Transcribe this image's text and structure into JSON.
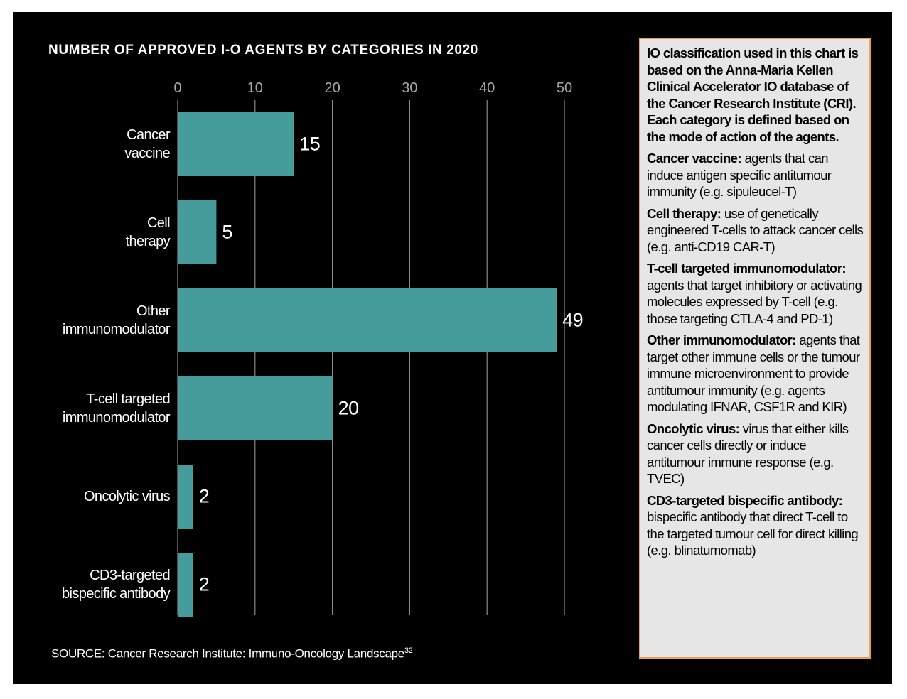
{
  "chart_data": {
    "type": "hbar",
    "title": "NUMBER OF APPROVED I-O AGENTS BY CATEGORIES IN 2020",
    "categories": [
      "Cancer\nvaccine",
      "Cell\ntherapy",
      "Other\nimmunomodulator",
      "T-cell targeted\nimmunomodulator",
      "Oncolytic virus",
      "CD3-targeted\nbispecific antibody"
    ],
    "values": [
      15,
      5,
      49,
      20,
      2,
      2
    ],
    "color": "#469b9b",
    "xlim": [
      0,
      50
    ],
    "xticks": [
      0,
      10,
      20,
      30,
      40,
      50
    ],
    "grid": true,
    "source": "SOURCE: Cancer Research Institute: Immuno-Oncology Landscape",
    "source_ref": "32"
  },
  "panel": {
    "intro": "IO classification used in this chart is based on the Anna-Maria Kellen Clinical Accelerator IO database of the Cancer Research Institute (CRI). Each category is defined based on the mode of action of the agents.",
    "definitions": [
      {
        "term": "Cancer vaccine:",
        "text": "agents that can induce antigen specific antitumour immunity (e.g. sipuleucel-T)"
      },
      {
        "term": "Cell therapy:",
        "text": "use of genetically engineered T-cells to attack cancer cells (e.g. anti-CD19 CAR-T)"
      },
      {
        "term": "T-cell targeted immunomodulator:",
        "text": "agents that target inhibitory or activating molecules expressed by T-cell (e.g. those targeting CTLA-4 and PD-1)"
      },
      {
        "term": "Other immunomodulator:",
        "text": "agents that target other immune cells or the tumour immune microenvironment to provide antitumour immunity (e.g. agents modulating IFNAR, CSF1R and KIR)"
      },
      {
        "term": "Oncolytic virus:",
        "text": "virus that either kills cancer cells directly or induce antitumour immune response (e.g. TVEC)"
      },
      {
        "term": "CD3-targeted bispecific antibody:",
        "text": "bispecific antibody that direct T-cell to the targeted tumour cell for direct killing (e.g. blinatumomab)"
      }
    ]
  }
}
